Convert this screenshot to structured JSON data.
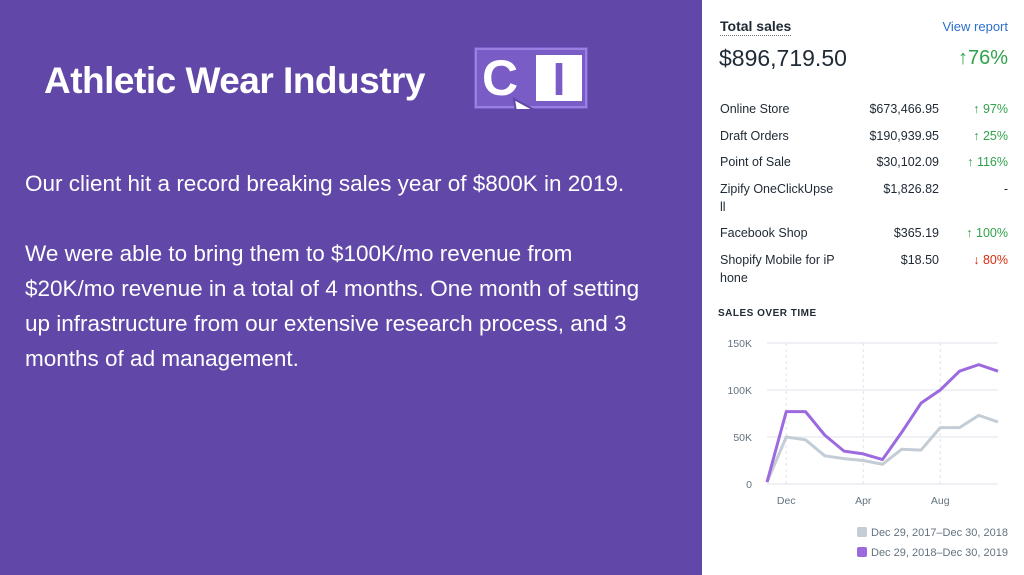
{
  "slide": {
    "title": "Athletic Wear Industry",
    "logo": {
      "left": "C",
      "right": "I"
    },
    "paragraphs": [
      "Our client hit a record breaking sales  year of $800K in 2019.",
      "We were able to bring them to $100K/mo revenue from $20K/mo revenue in a total of 4 months. One month of setting up infrastructure from our extensive research process,  and 3 months of ad management."
    ]
  },
  "report": {
    "title": "Total sales",
    "link": "View report",
    "total": "$896,719.50",
    "change": "↑76%",
    "rows": [
      [
        "Online Store",
        "$673,466.95",
        "↑ 97%"
      ],
      [
        "Draft Orders",
        "$190,939.95",
        "↑ 25%"
      ],
      [
        "Point of Sale",
        "$30,102.09",
        "↑ 116%"
      ],
      [
        "Zipify OneClickUpsell",
        "$1,826.82",
        "-"
      ],
      [
        "Facebook Shop",
        "$365.19",
        "↑ 100%"
      ],
      [
        "Shopify Mobile for iPhone",
        "$18.50",
        "↓ 80%"
      ]
    ]
  },
  "chart_data": {
    "type": "line",
    "title": "SALES OVER TIME",
    "categories": [
      null,
      "Dec",
      null,
      null,
      null,
      "Apr",
      null,
      null,
      null,
      "Aug",
      null,
      null,
      null
    ],
    "series": [
      {
        "name": "Dec 29, 2017–Dec 30, 2018",
        "color": "#c4cdd5",
        "values": [
          2000,
          50000,
          47000,
          30000,
          27000,
          25000,
          21000,
          37000,
          36000,
          60000,
          60000,
          73000,
          66000
        ]
      },
      {
        "name": "Dec 29, 2018–Dec 30, 2019",
        "color": "#9c6ade",
        "values": [
          2000,
          77000,
          77000,
          52000,
          35000,
          32000,
          26000,
          55000,
          86000,
          100000,
          120000,
          127000,
          120000
        ]
      }
    ],
    "ylim": [
      0,
      150000
    ],
    "yticks": [
      0,
      {
        "value": 50000,
        "label": "50K"
      },
      {
        "value": 100000,
        "label": "100K"
      },
      {
        "value": 150000,
        "label": "150K"
      }
    ],
    "grid": true
  }
}
